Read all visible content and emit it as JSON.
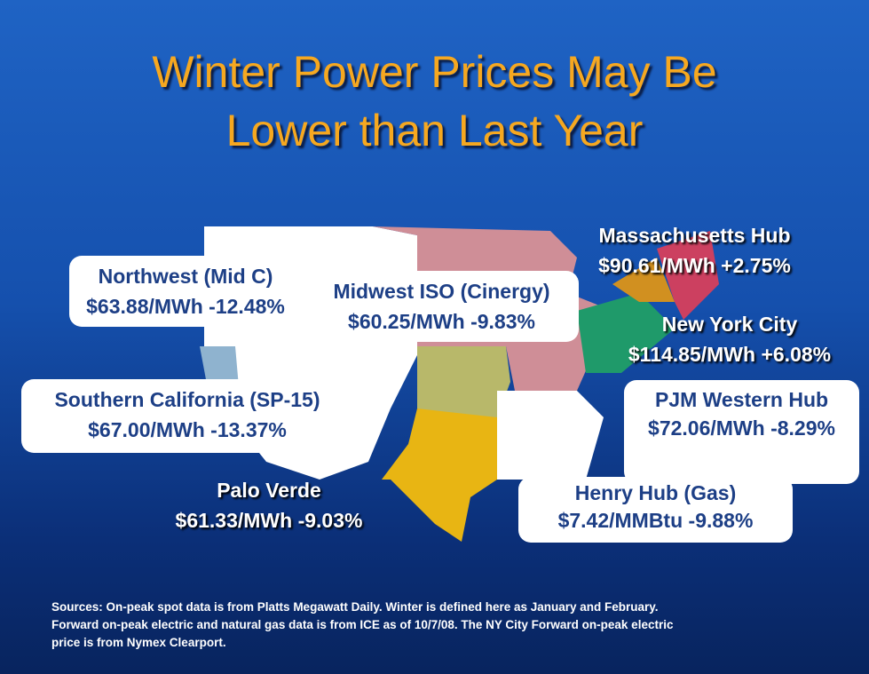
{
  "title": {
    "lines": [
      "Winter Power Prices May Be",
      "Lower than Last Year"
    ]
  },
  "labels": [
    {
      "name": "Massachusetts Hub",
      "price": "$90.61/MWh  +2.75%"
    },
    {
      "name": "Northwest (Mid C)",
      "price": "$63.88/MWh  -12.48%"
    },
    {
      "name": "Midwest ISO (Cinergy)",
      "price": "$60.25/MWh  -9.83%"
    },
    {
      "name": "New York City",
      "price": "$114.85/MWh  +6.08%"
    },
    {
      "name": "Southern California (SP-15)",
      "price": "$67.00/MWh  -13.37%"
    },
    {
      "name": "PJM Western Hub",
      "price": "$72.06/MWh  -8.29%"
    },
    {
      "name": "Palo Verde",
      "price": "$61.33/MWh  -9.03%"
    },
    {
      "name": "Henry Hub (Gas)",
      "price": "$7.42/MMBtu   -9.88%"
    }
  ],
  "footer": {
    "lines": [
      "Sources: On-peak spot data is from Platts Megawatt Daily. Winter is defined here as January and February.",
      "Forward on-peak electric and natural gas data is from ICE as of 10/7/08. The NY City Forward on-peak electric",
      "price is from Nymex Clearport."
    ]
  }
}
